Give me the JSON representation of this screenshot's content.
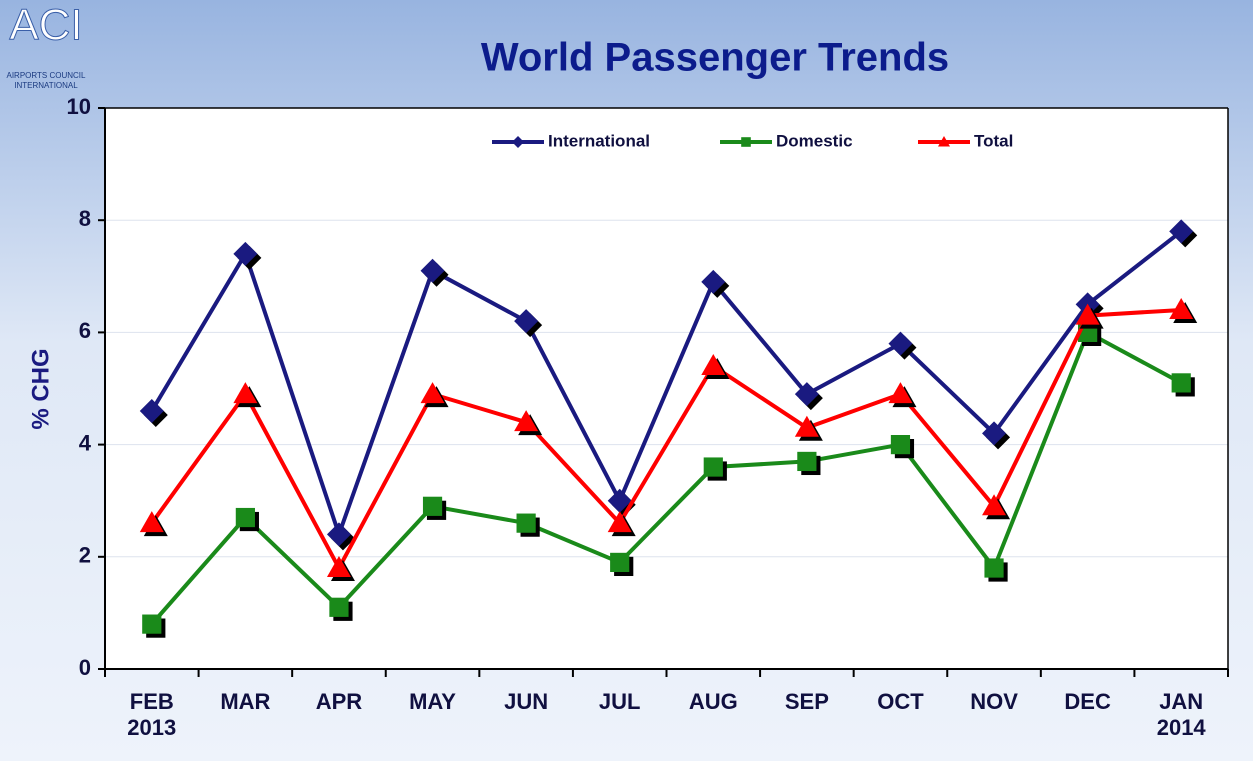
{
  "logo": {
    "mark": "ACI",
    "line1": "AIRPORTS COUNCIL",
    "line2": "INTERNATIONAL"
  },
  "chart_data": {
    "type": "line",
    "title": "World Passenger Trends",
    "y_label": "% CHG",
    "categories": [
      "FEB\n2013",
      "MAR",
      "APR",
      "MAY",
      "JUN",
      "JUL",
      "AUG",
      "SEP",
      "OCT",
      "NOV",
      "DEC",
      "JAN\n2014"
    ],
    "series": [
      {
        "name": "International",
        "color": "#1a1a80",
        "marker": "diamond",
        "values": [
          4.6,
          7.4,
          2.4,
          7.1,
          6.2,
          3.0,
          6.9,
          4.9,
          5.8,
          4.2,
          6.5,
          7.8
        ]
      },
      {
        "name": "Domestic",
        "color": "#1a8a1a",
        "marker": "square",
        "values": [
          0.8,
          2.7,
          1.1,
          2.9,
          2.6,
          1.9,
          3.6,
          3.7,
          4.0,
          1.8,
          6.0,
          5.1
        ]
      },
      {
        "name": "Total",
        "color": "#ff0000",
        "marker": "triangle",
        "values": [
          2.6,
          4.9,
          1.8,
          4.9,
          4.4,
          2.6,
          5.4,
          4.3,
          4.9,
          2.9,
          6.3,
          6.4
        ]
      }
    ],
    "ylim": [
      0,
      10
    ],
    "yticks": [
      0,
      2,
      4,
      6,
      8,
      10
    ],
    "grid": true,
    "legend": "top"
  }
}
